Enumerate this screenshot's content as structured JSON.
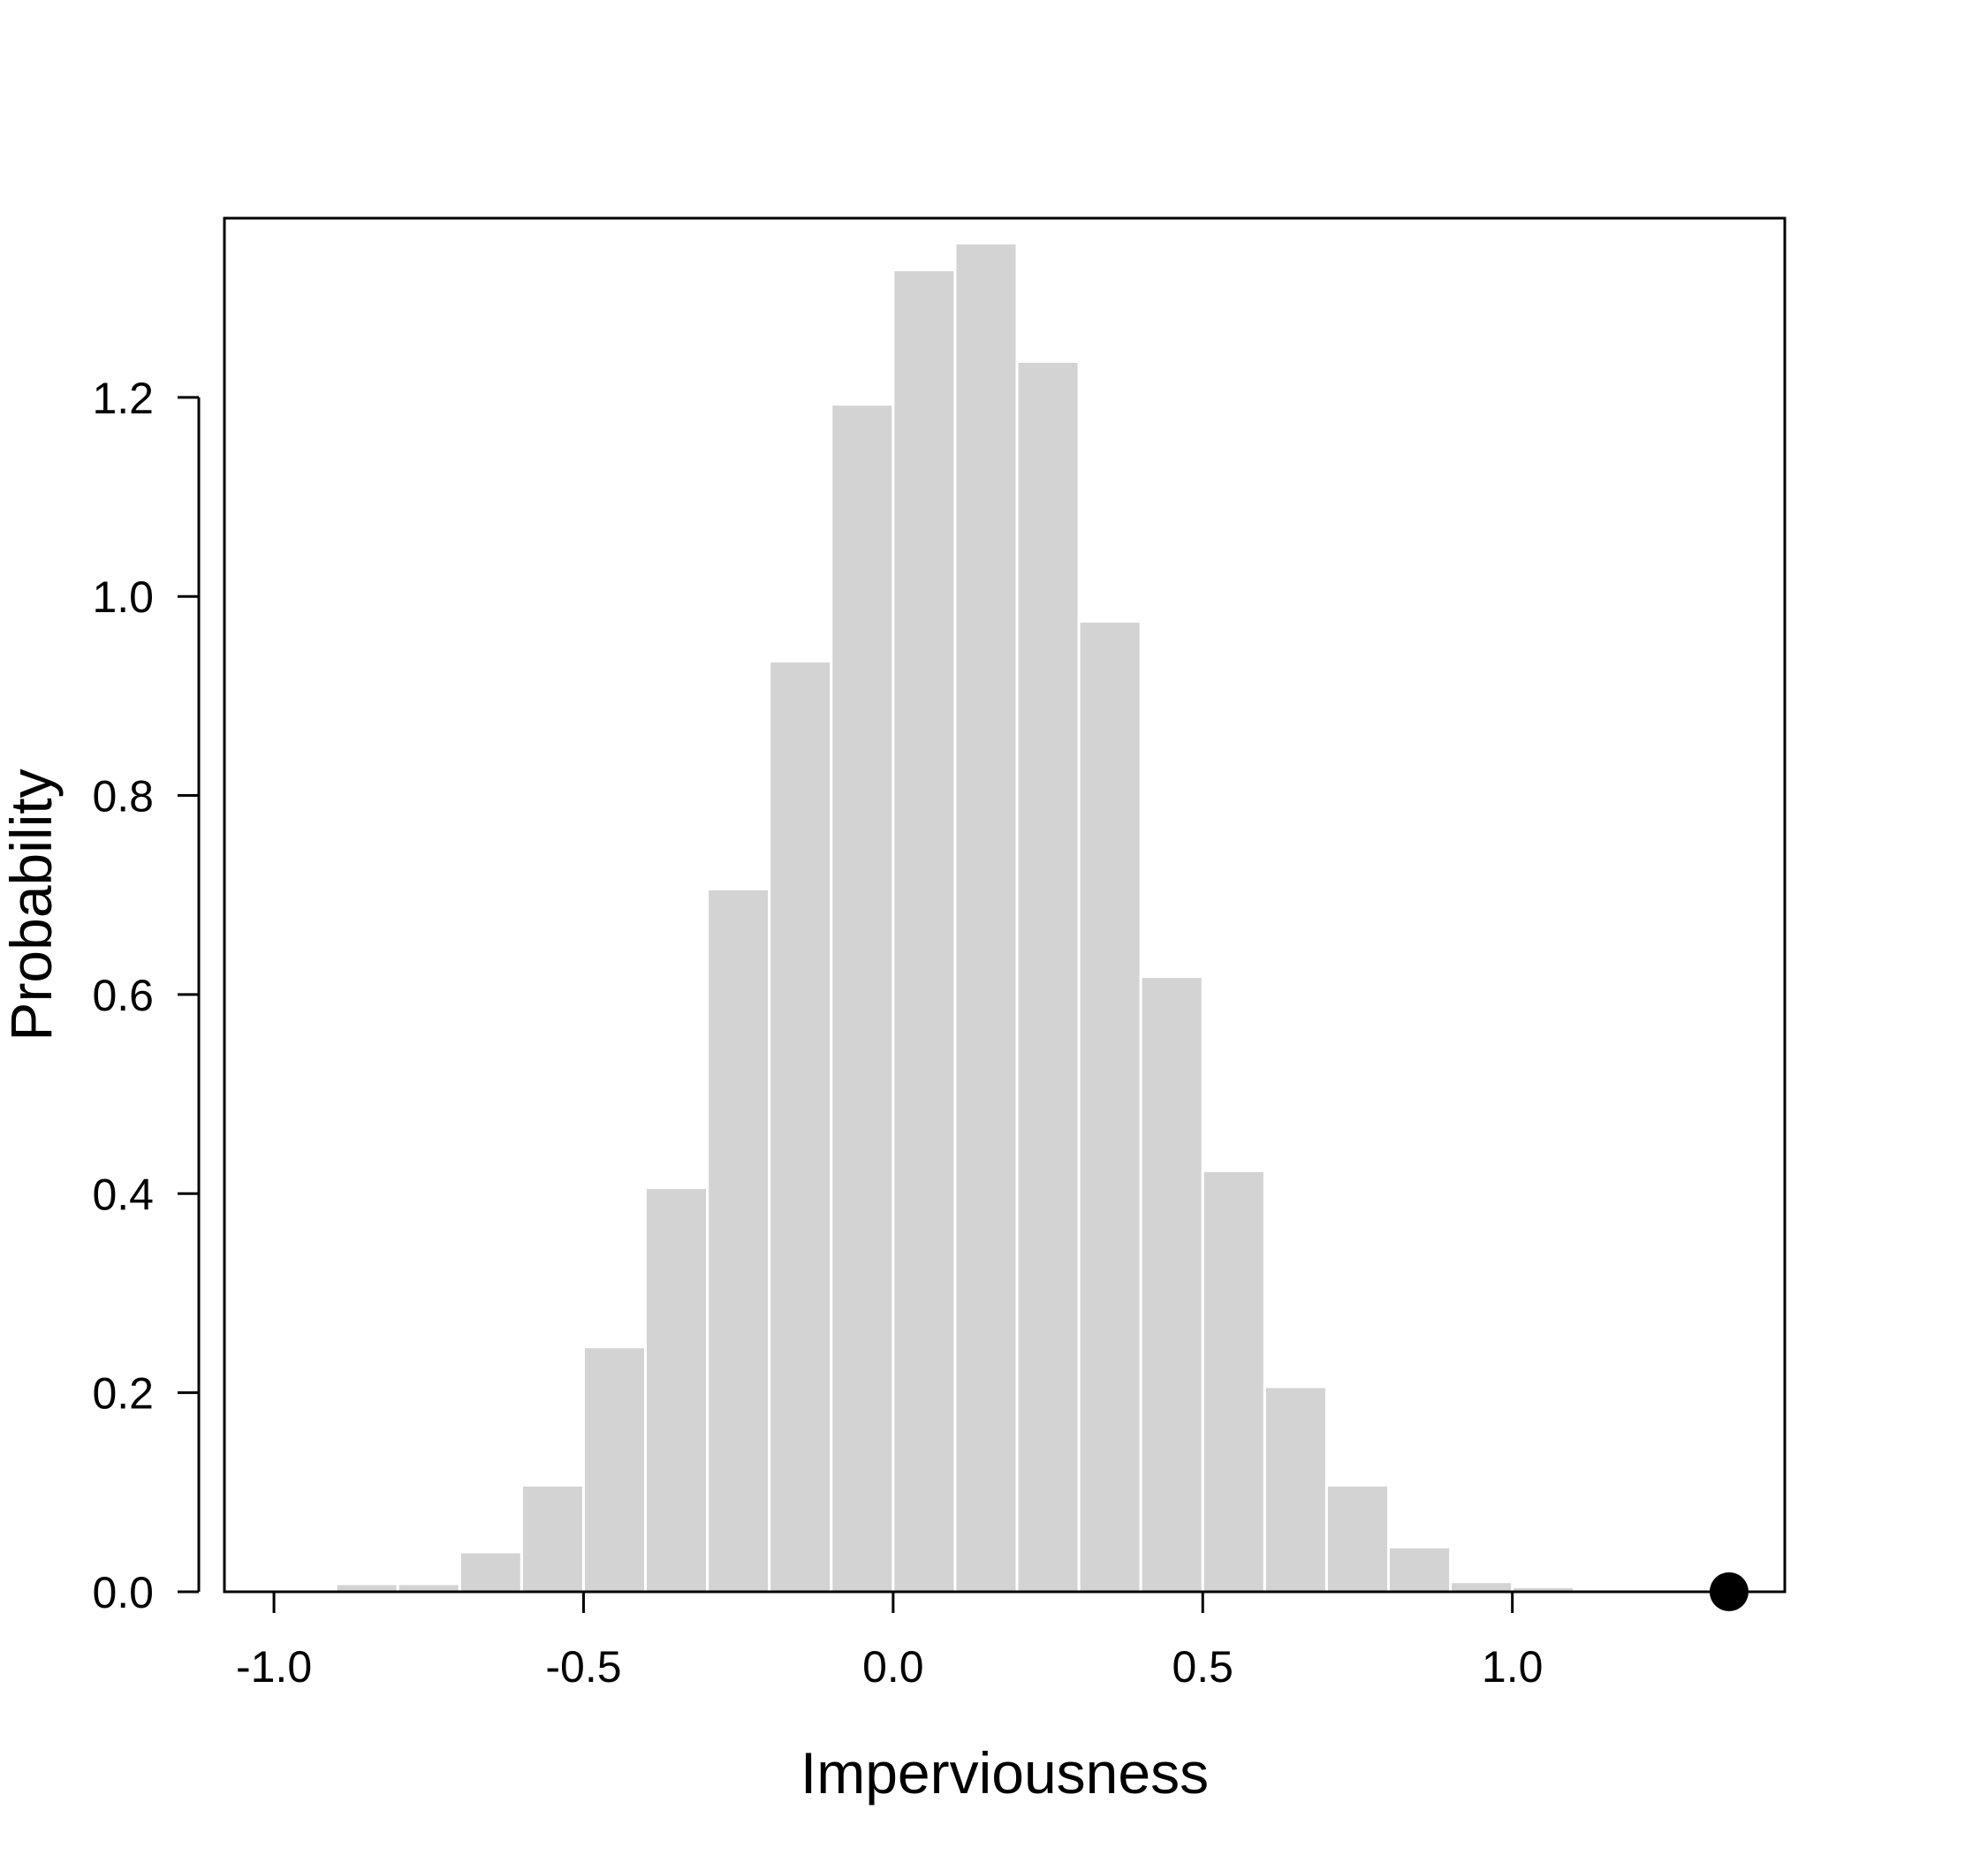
{
  "chart_data": {
    "type": "bar",
    "subtype": "histogram",
    "title": "",
    "xlabel": "Imperviousness",
    "ylabel": "Probability",
    "xlim": [
      -1.08,
      1.44
    ],
    "ylim": [
      0,
      1.38
    ],
    "x_ticks": [
      {
        "value": -1.0,
        "label": "-1.0"
      },
      {
        "value": -0.5,
        "label": "-0.5"
      },
      {
        "value": 0.0,
        "label": "0.0"
      },
      {
        "value": 0.5,
        "label": "0.5"
      },
      {
        "value": 1.0,
        "label": "1.0"
      }
    ],
    "y_ticks": [
      {
        "value": 0.0,
        "label": "0.0"
      },
      {
        "value": 0.2,
        "label": "0.2"
      },
      {
        "value": 0.4,
        "label": "0.4"
      },
      {
        "value": 0.6,
        "label": "0.6"
      },
      {
        "value": 0.8,
        "label": "0.8"
      },
      {
        "value": 1.0,
        "label": "1.0"
      },
      {
        "value": 1.2,
        "label": "1.2"
      }
    ],
    "bin_edges": [
      -1.0,
      -0.9,
      -0.8,
      -0.7,
      -0.6,
      -0.5,
      -0.4,
      -0.3,
      -0.2,
      -0.1,
      0.0,
      0.1,
      0.2,
      0.3,
      0.4,
      0.5,
      0.6,
      0.7,
      0.8,
      0.9,
      1.0,
      1.1,
      1.2,
      1.3
    ],
    "values": [
      0.0,
      0.008,
      0.008,
      0.04,
      0.107,
      0.246,
      0.406,
      0.706,
      0.935,
      1.193,
      1.328,
      1.355,
      1.236,
      0.975,
      0.618,
      0.423,
      0.206,
      0.107,
      0.045,
      0.01,
      0.005,
      0.002,
      0.0
    ],
    "bar_color": "#d3d3d3",
    "bar_edge_color": "#ffffff",
    "observed_point": {
      "x": 1.35,
      "y": 0.0,
      "color": "#000000"
    },
    "grid": false,
    "box": true
  }
}
